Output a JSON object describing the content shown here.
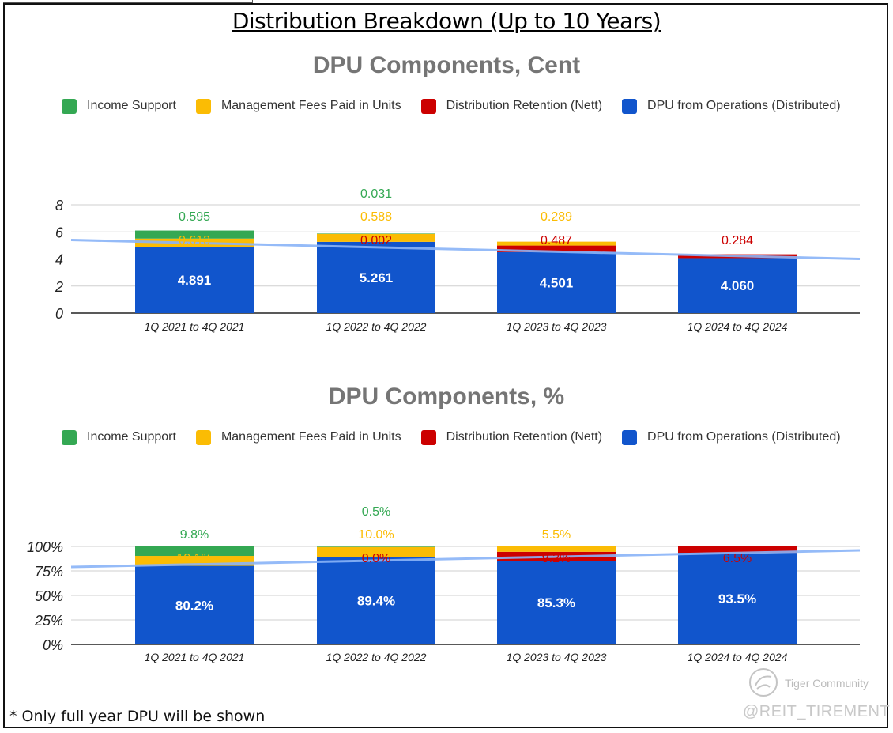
{
  "title": "Distribution Breakdown (Up to 10 Years)",
  "colors": {
    "income_support": "#34a853",
    "management_fees": "#fbbc04",
    "distribution_retention": "#cc0000",
    "dpu_operations": "#1155cc",
    "trendline": "#8ab4f8"
  },
  "legend": [
    {
      "label": "Income Support",
      "color_key": "income_support"
    },
    {
      "label": "Management Fees Paid in Units",
      "color_key": "management_fees"
    },
    {
      "label": "Distribution Retention (Nett)",
      "color_key": "distribution_retention"
    },
    {
      "label": "DPU from Operations (Distributed)",
      "color_key": "dpu_operations"
    }
  ],
  "chart_data": [
    {
      "type": "bar",
      "stacked": true,
      "title": "DPU Components, Cent",
      "categories": [
        "1Q 2021 to 4Q 2021",
        "1Q 2022 to 4Q 2022",
        "1Q 2023 to 4Q 2023",
        "1Q 2024 to 4Q 2024"
      ],
      "series": [
        {
          "name": "DPU from Operations (Distributed)",
          "color_key": "dpu_operations",
          "values": [
            4.891,
            5.261,
            4.501,
            4.06
          ],
          "labels": [
            "4.891",
            "5.261",
            "4.501",
            "4.060"
          ]
        },
        {
          "name": "Distribution Retention (Nett)",
          "color_key": "distribution_retention",
          "values": [
            0,
            0.002,
            0.487,
            0.284
          ],
          "labels": [
            "",
            "0.002",
            "0.487",
            "0.284"
          ]
        },
        {
          "name": "Management Fees Paid in Units",
          "color_key": "management_fees",
          "values": [
            0.613,
            0.588,
            0.289,
            0
          ],
          "labels": [
            "0.613",
            "0.588",
            "0.289",
            ""
          ]
        },
        {
          "name": "Income Support",
          "color_key": "income_support",
          "values": [
            0.595,
            0.031,
            0,
            0
          ],
          "labels": [
            "0.595",
            "0.031",
            "",
            ""
          ]
        }
      ],
      "yticks": [
        "0",
        "2",
        "4",
        "6",
        "8"
      ],
      "ylim": [
        0,
        8
      ],
      "trendline": [
        5.4,
        4.0
      ]
    },
    {
      "type": "bar",
      "stacked": true,
      "title": "DPU Components, %",
      "categories": [
        "1Q 2021 to 4Q 2021",
        "1Q 2022 to 4Q 2022",
        "1Q 2023 to 4Q 2023",
        "1Q 2024 to 4Q 2024"
      ],
      "series": [
        {
          "name": "DPU from Operations (Distributed)",
          "color_key": "dpu_operations",
          "values": [
            80.2,
            89.4,
            85.3,
            93.5
          ],
          "labels": [
            "80.2%",
            "89.4%",
            "85.3%",
            "93.5%"
          ]
        },
        {
          "name": "Distribution Retention (Nett)",
          "color_key": "distribution_retention",
          "values": [
            0,
            0.0,
            9.2,
            6.5
          ],
          "labels": [
            "",
            "0.0%",
            "9.2%",
            "6.5%"
          ]
        },
        {
          "name": "Management Fees Paid in Units",
          "color_key": "management_fees",
          "values": [
            10.1,
            10.0,
            5.5,
            0
          ],
          "labels": [
            "10.1%",
            "10.0%",
            "5.5%",
            ""
          ]
        },
        {
          "name": "Income Support",
          "color_key": "income_support",
          "values": [
            9.8,
            0.5,
            0,
            0
          ],
          "labels": [
            "9.8%",
            "0.5%",
            "",
            ""
          ]
        }
      ],
      "yticks": [
        "0%",
        "25%",
        "50%",
        "75%",
        "100%"
      ],
      "ylim": [
        0,
        100
      ],
      "trendline": [
        79,
        96
      ]
    }
  ],
  "footnote": "* Only full year DPU will be shown",
  "watermark": {
    "brand": "Tiger Community",
    "handle": "@REIT_TIREMENT"
  }
}
